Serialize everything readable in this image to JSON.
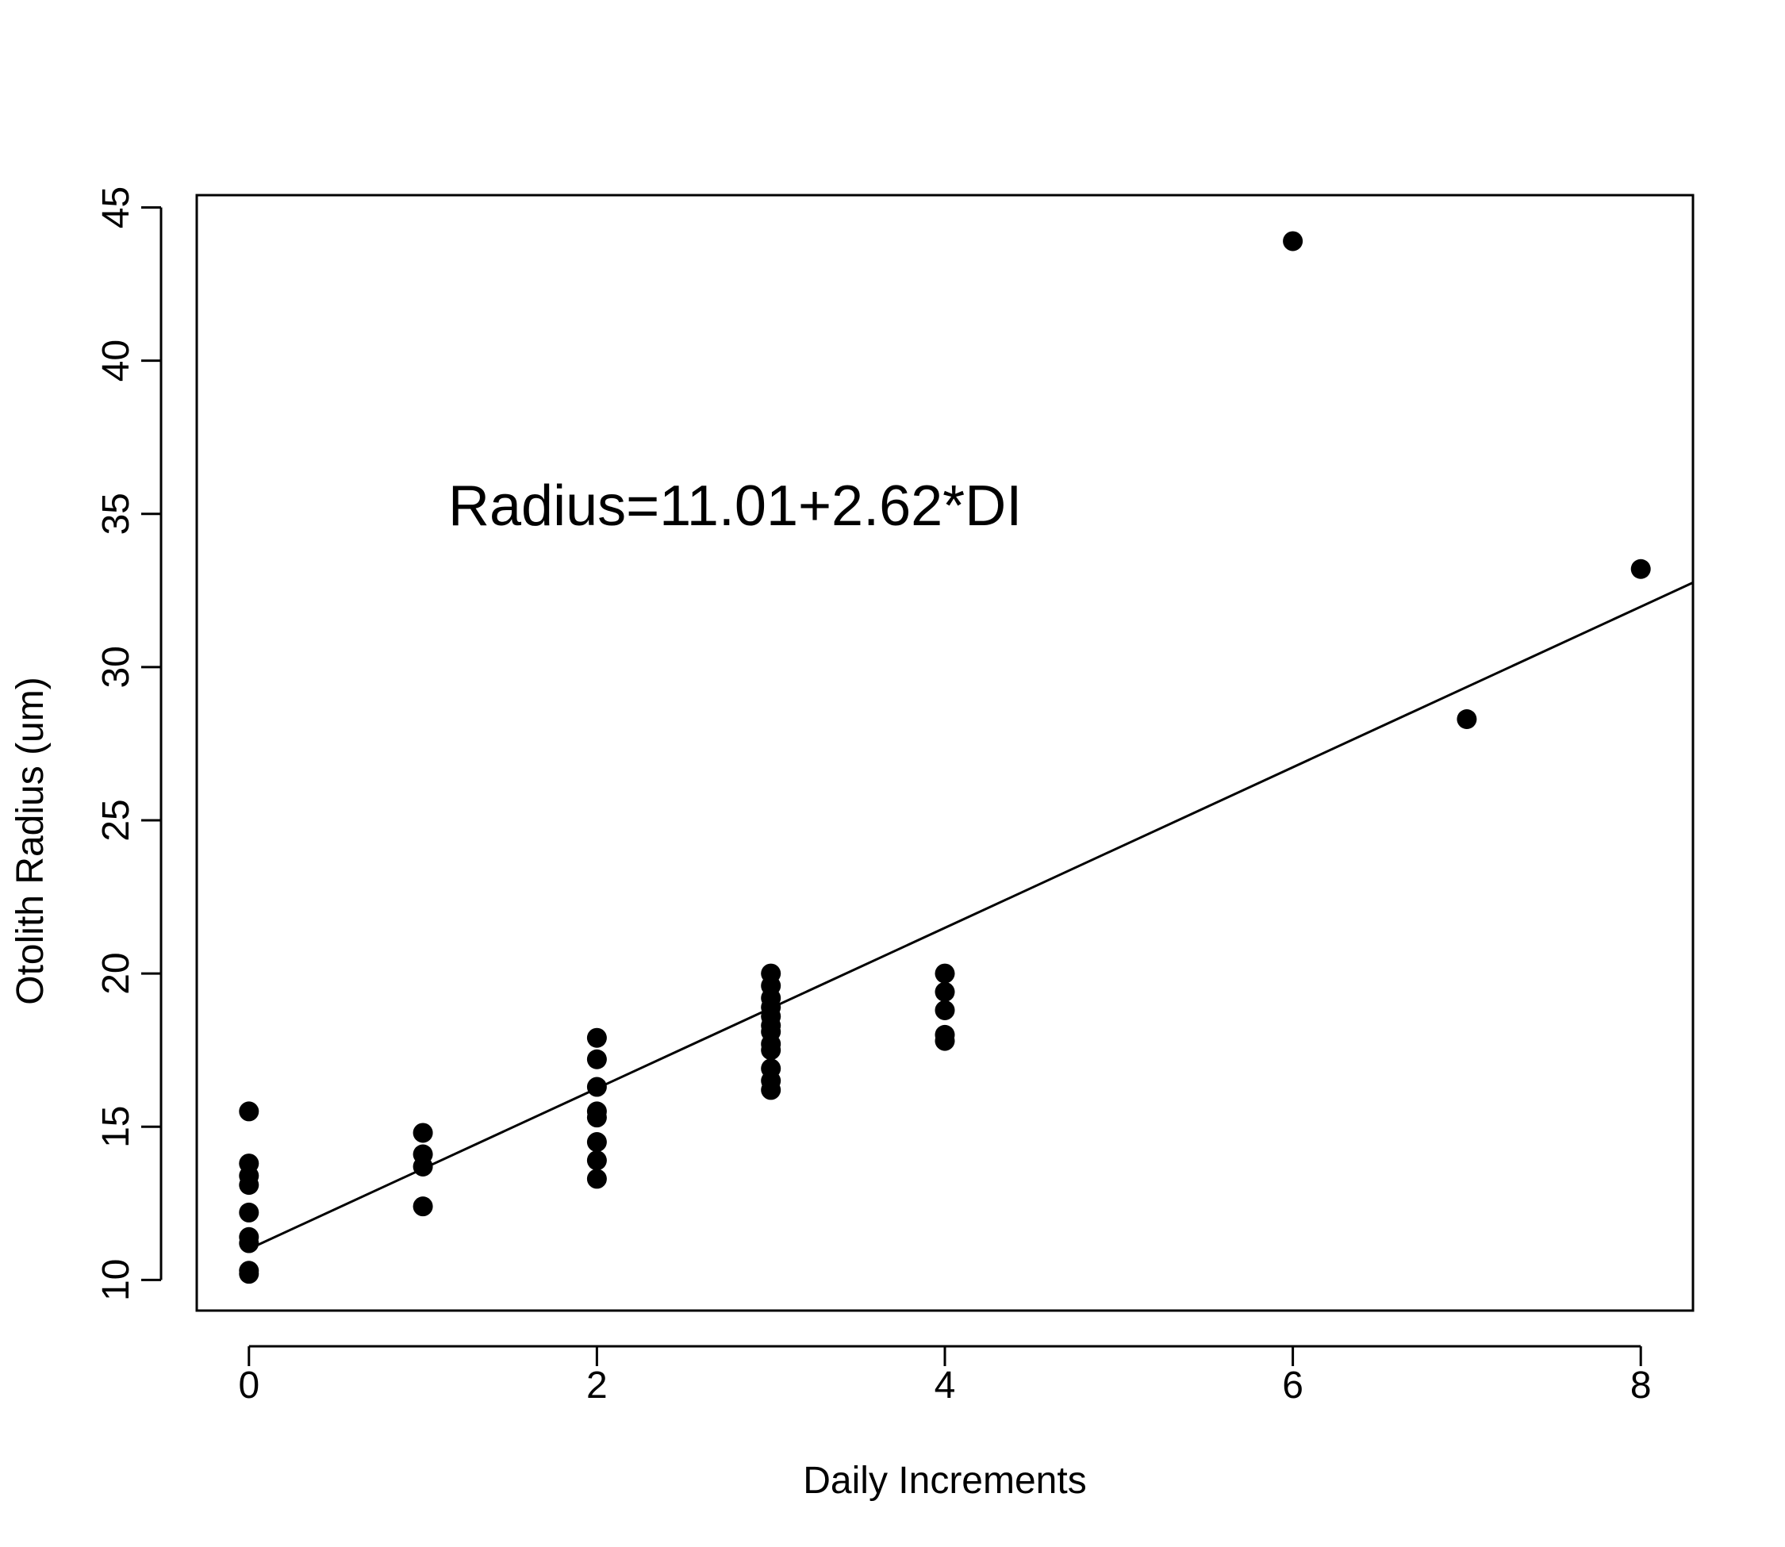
{
  "chart_data": {
    "type": "scatter",
    "title": "",
    "xlabel": "Daily Increments",
    "ylabel": "Otolith Radius (um)",
    "xlim": [
      -0.3,
      8.3
    ],
    "ylim": [
      9,
      45.4
    ],
    "x_ticks": [
      0,
      2,
      4,
      6,
      8
    ],
    "x_tick_labels": [
      "0",
      "2",
      "4",
      "6",
      "8"
    ],
    "y_ticks": [
      10,
      15,
      20,
      25,
      30,
      35,
      40,
      45
    ],
    "y_tick_labels": [
      "10",
      "15",
      "20",
      "25",
      "30",
      "35",
      "40",
      "45"
    ],
    "grid": false,
    "annotation": {
      "text": "Radius=11.01+2.62*DI",
      "x": 1.14,
      "y": 35
    },
    "regression": {
      "intercept": 11.01,
      "slope": 2.62
    },
    "series": [
      {
        "points": [
          [
            0,
            15.5
          ],
          [
            0,
            13.8
          ],
          [
            0,
            13.4
          ],
          [
            0,
            13.1
          ],
          [
            0,
            12.2
          ],
          [
            0,
            11.4
          ],
          [
            0,
            11.2
          ],
          [
            0,
            10.3
          ],
          [
            0,
            10.2
          ],
          [
            1,
            14.8
          ],
          [
            1,
            14.1
          ],
          [
            1,
            13.7
          ],
          [
            1,
            12.4
          ],
          [
            2,
            17.9
          ],
          [
            2,
            17.2
          ],
          [
            2,
            16.3
          ],
          [
            2,
            15.5
          ],
          [
            2,
            15.3
          ],
          [
            2,
            14.5
          ],
          [
            2,
            13.9
          ],
          [
            2,
            13.3
          ],
          [
            3,
            20.0
          ],
          [
            3,
            19.6
          ],
          [
            3,
            19.2
          ],
          [
            3,
            18.9
          ],
          [
            3,
            18.6
          ],
          [
            3,
            18.3
          ],
          [
            3,
            18.1
          ],
          [
            3,
            17.7
          ],
          [
            3,
            17.5
          ],
          [
            3,
            16.9
          ],
          [
            3,
            16.5
          ],
          [
            3,
            16.2
          ],
          [
            4,
            20.0
          ],
          [
            4,
            19.4
          ],
          [
            4,
            18.8
          ],
          [
            4,
            18.0
          ],
          [
            4,
            17.8
          ],
          [
            6,
            43.9
          ],
          [
            7,
            28.3
          ],
          [
            8,
            33.2
          ]
        ]
      }
    ]
  }
}
